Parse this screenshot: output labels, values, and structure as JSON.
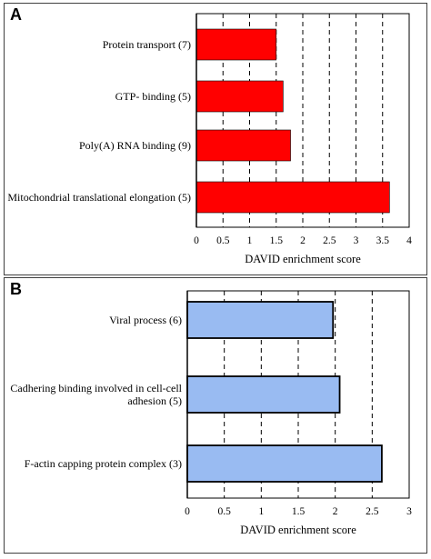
{
  "chart_data": [
    {
      "panel": "A",
      "type": "bar",
      "orientation": "horizontal",
      "categories": [
        "Protein transport (7)",
        "GTP- binding (5)",
        "Poly(A) RNA binding (9)",
        "Mitochondrial translational elongation (5)"
      ],
      "values": [
        1.5,
        1.63,
        1.77,
        3.63
      ],
      "xlabel": "DAVID enrichment score",
      "xlim": [
        0,
        4
      ],
      "xticks": [
        "0",
        "0.5",
        "1",
        "1.5",
        "2",
        "2.5",
        "3",
        "3.5",
        "4"
      ],
      "grid": "vertical dashed",
      "bar_color": "#ff0000"
    },
    {
      "panel": "B",
      "type": "bar",
      "orientation": "horizontal",
      "categories": [
        "Viral process (6)",
        "Cadhering binding involved in cell-cell adhesion (5)",
        "F-actin capping protein complex (3)"
      ],
      "category_lines": [
        [
          "Viral process (6)"
        ],
        [
          "Cadhering binding involved in cell-cell",
          "adhesion (5)"
        ],
        [
          "F-actin capping protein complex (3)"
        ]
      ],
      "values": [
        1.97,
        2.06,
        2.63
      ],
      "xlabel": "DAVID enrichment score",
      "xlim": [
        0,
        3
      ],
      "xticks": [
        "0",
        "0.5",
        "1",
        "1.5",
        "2",
        "2.5",
        "3"
      ],
      "grid": "vertical dashed",
      "bar_color": "#99bbf2"
    }
  ]
}
